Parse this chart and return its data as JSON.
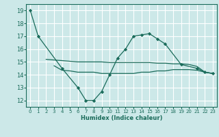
{
  "title": "",
  "xlabel": "Humidex (Indice chaleur)",
  "bg_color": "#cce8e8",
  "grid_color": "#ffffff",
  "line_color": "#1a6b5a",
  "xlim": [
    -0.5,
    23.5
  ],
  "ylim": [
    11.5,
    19.5
  ],
  "yticks": [
    12,
    13,
    14,
    15,
    16,
    17,
    18,
    19
  ],
  "xticks": [
    0,
    1,
    2,
    3,
    4,
    5,
    6,
    7,
    8,
    9,
    10,
    11,
    12,
    13,
    14,
    15,
    16,
    17,
    18,
    19,
    20,
    21,
    22,
    23
  ],
  "series0": {
    "x": [
      0,
      1,
      4,
      6,
      7,
      8,
      9,
      10,
      11,
      12,
      13,
      14,
      15,
      16,
      17,
      19,
      21,
      22,
      23
    ],
    "y": [
      19,
      17,
      14.5,
      13,
      12,
      12,
      12.7,
      14.0,
      15.3,
      16.0,
      17.0,
      17.1,
      17.2,
      16.8,
      16.4,
      14.8,
      14.5,
      14.2,
      14.1
    ]
  },
  "series1": {
    "x": [
      2,
      3,
      4,
      5,
      6,
      7,
      8,
      9,
      10,
      11,
      12,
      13,
      14,
      15,
      16,
      17,
      18,
      19,
      20,
      21,
      22,
      23
    ],
    "y": [
      15.2,
      15.15,
      15.1,
      15.05,
      15.0,
      15.0,
      15.0,
      15.0,
      14.95,
      14.95,
      14.95,
      14.95,
      14.95,
      14.95,
      14.9,
      14.9,
      14.85,
      14.85,
      14.8,
      14.65,
      14.2,
      14.1
    ]
  },
  "series2": {
    "x": [
      3,
      4,
      5,
      6,
      7,
      8,
      9,
      10,
      11,
      12,
      13,
      14,
      15,
      16,
      17,
      18,
      19,
      20,
      21,
      22,
      23
    ],
    "y": [
      14.7,
      14.35,
      14.3,
      14.2,
      14.2,
      14.2,
      14.1,
      14.1,
      14.1,
      14.1,
      14.1,
      14.2,
      14.2,
      14.3,
      14.3,
      14.4,
      14.4,
      14.4,
      14.35,
      14.2,
      14.1
    ]
  }
}
